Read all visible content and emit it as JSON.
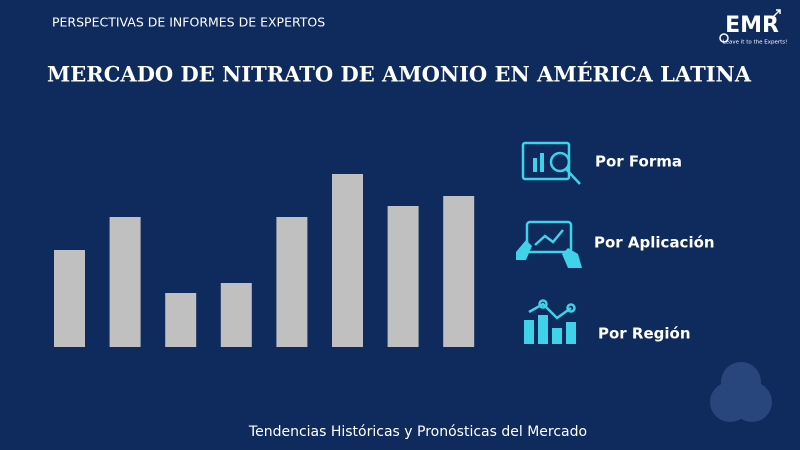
{
  "header": {
    "kicker": "PERSPECTIVAS DE INFORMES DE EXPERTOS",
    "title": "MERCADO DE NITRATO DE AMONIO EN AMÉRICA LATINA",
    "logo": "EMR",
    "tagline": "Leave it to the Experts!"
  },
  "chart_data": {
    "type": "bar",
    "values": [
      97,
      130,
      54,
      64,
      130,
      173,
      141,
      151
    ],
    "color": "#c0c0c0"
  },
  "segments": [
    {
      "label": "Por Forma"
    },
    {
      "label": "Por Aplicación"
    },
    {
      "label": "Por Región"
    }
  ],
  "footer": "Tendencias Históricas y Pronósticas del Mercado"
}
